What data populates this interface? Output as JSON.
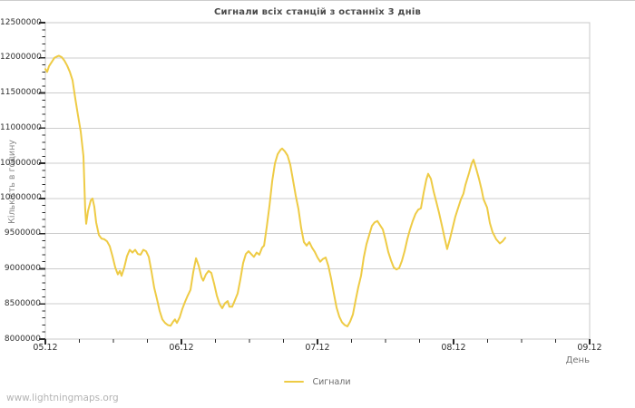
{
  "title": "Сигнали всіх станцій з останніх 3 днів",
  "watermark": "www.lightningmaps.org",
  "legend": {
    "position": "bottom-center",
    "items": [
      {
        "label": "Сигнали",
        "color": "#eecb45"
      }
    ]
  },
  "colors": {
    "series_line": "#eecb45",
    "grid": "#cccccc",
    "plot_border": "#c8c8c8",
    "ticks": "#2a2a2a",
    "tick_labels": "#2f2f2f"
  },
  "chart_data": {
    "type": "line",
    "title": "Сигнали всіх станцій з останніх 3 днів",
    "xlabel": "День",
    "ylabel": "Кількість в годину",
    "grid": "horizontal-only",
    "legend_position": "bottom-center",
    "xlim_days": [
      0,
      4
    ],
    "x_tick_labels": [
      "05.12",
      "06.12",
      "07.12",
      "08.12",
      "09.12"
    ],
    "x_tick_positions_days": [
      0,
      1,
      2,
      3,
      4
    ],
    "x_minor_tick_step_days": 0.25,
    "ylim": [
      8000000,
      12500000
    ],
    "y_tick_step": 500000,
    "y_minor_tick_step": 100000,
    "y_tick_labels": [
      "8000000",
      "8500000",
      "9000000",
      "9500000",
      "10000000",
      "10500000",
      "11000000",
      "11500000",
      "12000000",
      "12500000"
    ],
    "series": [
      {
        "name": "Сигнали",
        "color": "#eecb45",
        "x_unit": "days since 05.12 00:00",
        "y_unit": "signals per hour",
        "points": [
          [
            0,
            11840000
          ],
          [
            0.013,
            11800000
          ],
          [
            0.027,
            11880000
          ],
          [
            0.047,
            11940000
          ],
          [
            0.067,
            12000000
          ],
          [
            0.087,
            12020000
          ],
          [
            0.1,
            12030000
          ],
          [
            0.12,
            12010000
          ],
          [
            0.14,
            11960000
          ],
          [
            0.16,
            11890000
          ],
          [
            0.18,
            11800000
          ],
          [
            0.2,
            11680000
          ],
          [
            0.22,
            11420000
          ],
          [
            0.24,
            11180000
          ],
          [
            0.26,
            10950000
          ],
          [
            0.28,
            10600000
          ],
          [
            0.293,
            9850000
          ],
          [
            0.3,
            9640000
          ],
          [
            0.313,
            9820000
          ],
          [
            0.333,
            9970000
          ],
          [
            0.347,
            10000000
          ],
          [
            0.36,
            9880000
          ],
          [
            0.373,
            9660000
          ],
          [
            0.393,
            9480000
          ],
          [
            0.413,
            9430000
          ],
          [
            0.433,
            9420000
          ],
          [
            0.453,
            9390000
          ],
          [
            0.473,
            9320000
          ],
          [
            0.493,
            9180000
          ],
          [
            0.513,
            9020000
          ],
          [
            0.533,
            8920000
          ],
          [
            0.547,
            8970000
          ],
          [
            0.56,
            8900000
          ],
          [
            0.58,
            9020000
          ],
          [
            0.6,
            9180000
          ],
          [
            0.62,
            9270000
          ],
          [
            0.64,
            9230000
          ],
          [
            0.66,
            9270000
          ],
          [
            0.68,
            9210000
          ],
          [
            0.7,
            9200000
          ],
          [
            0.72,
            9270000
          ],
          [
            0.74,
            9250000
          ],
          [
            0.76,
            9170000
          ],
          [
            0.78,
            8960000
          ],
          [
            0.8,
            8730000
          ],
          [
            0.82,
            8570000
          ],
          [
            0.84,
            8400000
          ],
          [
            0.86,
            8280000
          ],
          [
            0.88,
            8230000
          ],
          [
            0.9,
            8200000
          ],
          [
            0.92,
            8190000
          ],
          [
            0.94,
            8250000
          ],
          [
            0.953,
            8280000
          ],
          [
            0.967,
            8230000
          ],
          [
            0.987,
            8310000
          ],
          [
            1.007,
            8430000
          ],
          [
            1.027,
            8530000
          ],
          [
            1.047,
            8620000
          ],
          [
            1.067,
            8700000
          ],
          [
            1.087,
            8950000
          ],
          [
            1.107,
            9150000
          ],
          [
            1.127,
            9040000
          ],
          [
            1.147,
            8880000
          ],
          [
            1.16,
            8830000
          ],
          [
            1.18,
            8920000
          ],
          [
            1.2,
            8970000
          ],
          [
            1.22,
            8940000
          ],
          [
            1.24,
            8790000
          ],
          [
            1.26,
            8620000
          ],
          [
            1.28,
            8500000
          ],
          [
            1.3,
            8440000
          ],
          [
            1.32,
            8510000
          ],
          [
            1.34,
            8540000
          ],
          [
            1.353,
            8460000
          ],
          [
            1.373,
            8460000
          ],
          [
            1.393,
            8550000
          ],
          [
            1.413,
            8650000
          ],
          [
            1.433,
            8850000
          ],
          [
            1.453,
            9080000
          ],
          [
            1.473,
            9210000
          ],
          [
            1.493,
            9250000
          ],
          [
            1.513,
            9210000
          ],
          [
            1.533,
            9170000
          ],
          [
            1.553,
            9230000
          ],
          [
            1.573,
            9200000
          ],
          [
            1.593,
            9300000
          ],
          [
            1.607,
            9330000
          ],
          [
            1.627,
            9600000
          ],
          [
            1.647,
            9900000
          ],
          [
            1.667,
            10250000
          ],
          [
            1.687,
            10500000
          ],
          [
            1.707,
            10630000
          ],
          [
            1.727,
            10690000
          ],
          [
            1.74,
            10710000
          ],
          [
            1.76,
            10670000
          ],
          [
            1.78,
            10610000
          ],
          [
            1.8,
            10480000
          ],
          [
            1.82,
            10260000
          ],
          [
            1.84,
            10040000
          ],
          [
            1.86,
            9850000
          ],
          [
            1.88,
            9580000
          ],
          [
            1.9,
            9380000
          ],
          [
            1.92,
            9330000
          ],
          [
            1.94,
            9380000
          ],
          [
            1.96,
            9300000
          ],
          [
            1.98,
            9240000
          ],
          [
            2,
            9160000
          ],
          [
            2.02,
            9100000
          ],
          [
            2.04,
            9140000
          ],
          [
            2.06,
            9160000
          ],
          [
            2.08,
            9040000
          ],
          [
            2.1,
            8860000
          ],
          [
            2.12,
            8650000
          ],
          [
            2.14,
            8450000
          ],
          [
            2.16,
            8320000
          ],
          [
            2.18,
            8240000
          ],
          [
            2.2,
            8200000
          ],
          [
            2.22,
            8180000
          ],
          [
            2.24,
            8250000
          ],
          [
            2.26,
            8350000
          ],
          [
            2.28,
            8550000
          ],
          [
            2.3,
            8740000
          ],
          [
            2.32,
            8900000
          ],
          [
            2.34,
            9160000
          ],
          [
            2.36,
            9350000
          ],
          [
            2.38,
            9480000
          ],
          [
            2.4,
            9610000
          ],
          [
            2.42,
            9660000
          ],
          [
            2.44,
            9680000
          ],
          [
            2.46,
            9620000
          ],
          [
            2.48,
            9560000
          ],
          [
            2.5,
            9410000
          ],
          [
            2.52,
            9240000
          ],
          [
            2.54,
            9120000
          ],
          [
            2.56,
            9020000
          ],
          [
            2.58,
            8990000
          ],
          [
            2.6,
            9010000
          ],
          [
            2.62,
            9110000
          ],
          [
            2.64,
            9250000
          ],
          [
            2.66,
            9420000
          ],
          [
            2.68,
            9560000
          ],
          [
            2.7,
            9680000
          ],
          [
            2.72,
            9780000
          ],
          [
            2.74,
            9840000
          ],
          [
            2.76,
            9860000
          ],
          [
            2.78,
            10080000
          ],
          [
            2.8,
            10270000
          ],
          [
            2.813,
            10350000
          ],
          [
            2.833,
            10280000
          ],
          [
            2.853,
            10100000
          ],
          [
            2.873,
            9950000
          ],
          [
            2.893,
            9800000
          ],
          [
            2.913,
            9630000
          ],
          [
            2.933,
            9450000
          ],
          [
            2.953,
            9280000
          ],
          [
            2.973,
            9420000
          ],
          [
            2.993,
            9580000
          ],
          [
            3.013,
            9740000
          ],
          [
            3.033,
            9860000
          ],
          [
            3.053,
            9980000
          ],
          [
            3.073,
            10070000
          ],
          [
            3.087,
            10190000
          ],
          [
            3.113,
            10360000
          ],
          [
            3.133,
            10500000
          ],
          [
            3.147,
            10550000
          ],
          [
            3.167,
            10420000
          ],
          [
            3.187,
            10280000
          ],
          [
            3.207,
            10120000
          ],
          [
            3.22,
            9990000
          ],
          [
            3.247,
            9870000
          ],
          [
            3.267,
            9650000
          ],
          [
            3.287,
            9520000
          ],
          [
            3.313,
            9420000
          ],
          [
            3.34,
            9360000
          ],
          [
            3.36,
            9390000
          ],
          [
            3.38,
            9440000
          ]
        ]
      }
    ]
  }
}
